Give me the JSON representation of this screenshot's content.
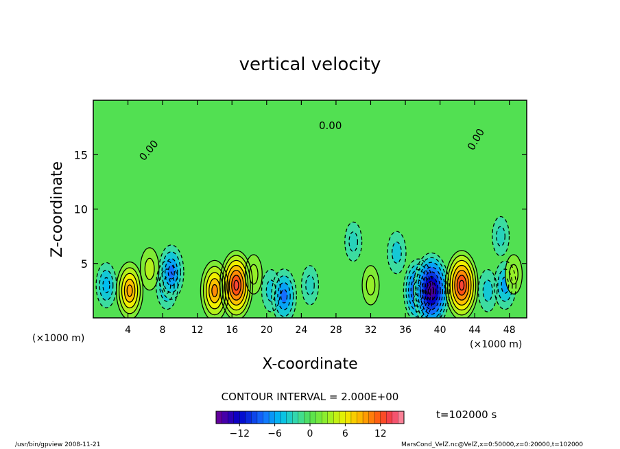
{
  "chart_data": {
    "type": "heatmap",
    "title": "vertical velocity",
    "xlabel": "X-coordinate",
    "ylabel": "Z-coordinate",
    "x_unit_left": "(×1000 m)",
    "x_unit_right": "(×1000 m)",
    "xlim": [
      0,
      50
    ],
    "ylim": [
      0,
      20
    ],
    "x_ticks": [
      4,
      8,
      12,
      16,
      20,
      24,
      28,
      32,
      36,
      40,
      44,
      48
    ],
    "y_ticks": [
      5,
      10,
      15
    ],
    "contour_interval_text": "CONTOUR INTERVAL = 2.000E+00",
    "time_text": "t=102000 s",
    "contour_zero_label": "0.00",
    "colorbar": {
      "range": [
        -16,
        16
      ],
      "ticks": [
        -12,
        -6,
        0,
        6,
        12
      ],
      "tick_labels": [
        "−12",
        "−6",
        "0",
        "6",
        "12"
      ]
    },
    "features": [
      {
        "x": 4.2,
        "z": 2.5,
        "value": 9
      },
      {
        "x": 6.5,
        "z": 4.5,
        "value": 4
      },
      {
        "x": 1.5,
        "z": 3.0,
        "value": -5
      },
      {
        "x": 8.5,
        "z": 3.0,
        "value": -6
      },
      {
        "x": 9.0,
        "z": 4.2,
        "value": -8
      },
      {
        "x": 14.0,
        "z": 2.5,
        "value": 10
      },
      {
        "x": 16.5,
        "z": 3.0,
        "value": 13
      },
      {
        "x": 18.5,
        "z": 4.0,
        "value": 3
      },
      {
        "x": 20.5,
        "z": 2.5,
        "value": -4
      },
      {
        "x": 22.0,
        "z": 2.0,
        "value": -8
      },
      {
        "x": 25.0,
        "z": 3.0,
        "value": -3
      },
      {
        "x": 32.0,
        "z": 3.0,
        "value": 3
      },
      {
        "x": 30.0,
        "z": 7.0,
        "value": -3
      },
      {
        "x": 35.0,
        "z": 6.0,
        "value": -4
      },
      {
        "x": 37.5,
        "z": 2.5,
        "value": -11
      },
      {
        "x": 39.0,
        "z": 2.5,
        "value": -15
      },
      {
        "x": 42.5,
        "z": 3.0,
        "value": 13
      },
      {
        "x": 45.5,
        "z": 2.5,
        "value": -4
      },
      {
        "x": 47.5,
        "z": 3.0,
        "value": -6
      },
      {
        "x": 48.5,
        "z": 4.0,
        "value": 3
      },
      {
        "x": 47.0,
        "z": 7.5,
        "value": -3
      }
    ]
  },
  "footer": {
    "left": "/usr/bin/gpview  2008-11-21",
    "right": "MarsCond_VelZ.nc@VelZ,x=0:50000,z=0:20000,t=102000"
  }
}
